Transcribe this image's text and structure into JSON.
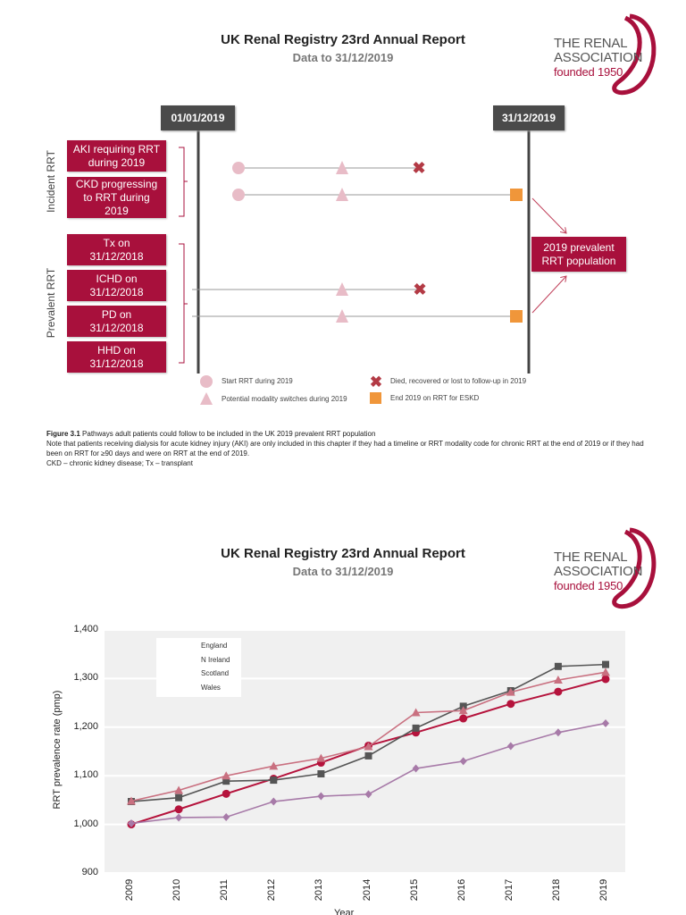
{
  "page1": {
    "title": "UK Renal Registry 23rd Annual Report",
    "subtitle": "Data to 31/12/2019",
    "logo": {
      "line1": "THE RENAL",
      "line2": "ASSOCIATION",
      "line3": "founded 1950"
    },
    "diagram": {
      "date_start": "01/01/2019",
      "date_end": "31/12/2019",
      "group_incident": "Incident RRT",
      "group_prevalent": "Prevalent RRT",
      "incident_boxes": [
        "AKI requiring RRT during 2019",
        "CKD progressing to RRT during 2019"
      ],
      "prevalent_boxes": [
        "Tx on 31/12/2018",
        "ICHD on 31/12/2018",
        "PD on 31/12/2018",
        "HHD on 31/12/2018"
      ],
      "result_box": "2019 prevalent RRT population",
      "legend": {
        "start": "Start RRT during 2019",
        "switch": "Potential modality switches during 2019",
        "died": "Died, recovered or lost to follow-up in 2019",
        "end": "End 2019 on RRT for ESKD"
      },
      "colors": {
        "box": "#a8103c",
        "date": "#4a4a4a",
        "start": "#e8bcc7",
        "died": "#b33a45",
        "end": "#f0963a"
      }
    },
    "caption": {
      "label": "Figure 3.1",
      "text": "Pathways adult patients could follow to be included in the UK 2019 prevalent RRT population",
      "note": "Note that patients receiving dialysis for acute kidney injury (AKI) are only included in this chapter if they had a timeline or RRT modality code for chronic RRT at the end of 2019 or if they had been on RRT for ≥90 days and were on RRT at the end of 2019.",
      "abbrev": "CKD – chronic kidney disease; Tx – transplant"
    }
  },
  "page2": {
    "title": "UK Renal Registry 23rd Annual Report",
    "subtitle": "Data to 31/12/2019",
    "logo": {
      "line1": "THE RENAL",
      "line2": "ASSOCIATION",
      "line3": "founded 1950"
    }
  },
  "chart_data": {
    "type": "line",
    "title": "",
    "xlabel": "Year",
    "ylabel": "RRT prevalence rate (pmp)",
    "x": [
      2009,
      2010,
      2011,
      2012,
      2013,
      2014,
      2015,
      2016,
      2017,
      2018,
      2019
    ],
    "ylim": [
      900,
      1400
    ],
    "yticks": [
      "900",
      "1,000",
      "1,100",
      "1,200",
      "1,300",
      "1,400"
    ],
    "grid": true,
    "legend": "top-left",
    "series": [
      {
        "name": "England",
        "marker": "circle",
        "color": "#b5133c",
        "values": [
          1000,
          1031,
          1063,
          1094,
          1127,
          1162,
          1189,
          1218,
          1248,
          1273,
          1299
        ]
      },
      {
        "name": "N Ireland",
        "marker": "square",
        "color": "#555555",
        "values": [
          1047,
          1055,
          1089,
          1091,
          1104,
          1141,
          1198,
          1243,
          1275,
          1325,
          1329
        ]
      },
      {
        "name": "Scotland",
        "marker": "diamond",
        "color": "#a77aa8",
        "values": [
          1002,
          1014,
          1015,
          1047,
          1058,
          1062,
          1115,
          1130,
          1161,
          1189,
          1208
        ]
      },
      {
        "name": "Wales",
        "marker": "triangle",
        "color": "#c97080",
        "values": [
          1048,
          1070,
          1100,
          1120,
          1136,
          1160,
          1230,
          1234,
          1272,
          1297,
          1313
        ]
      }
    ]
  }
}
